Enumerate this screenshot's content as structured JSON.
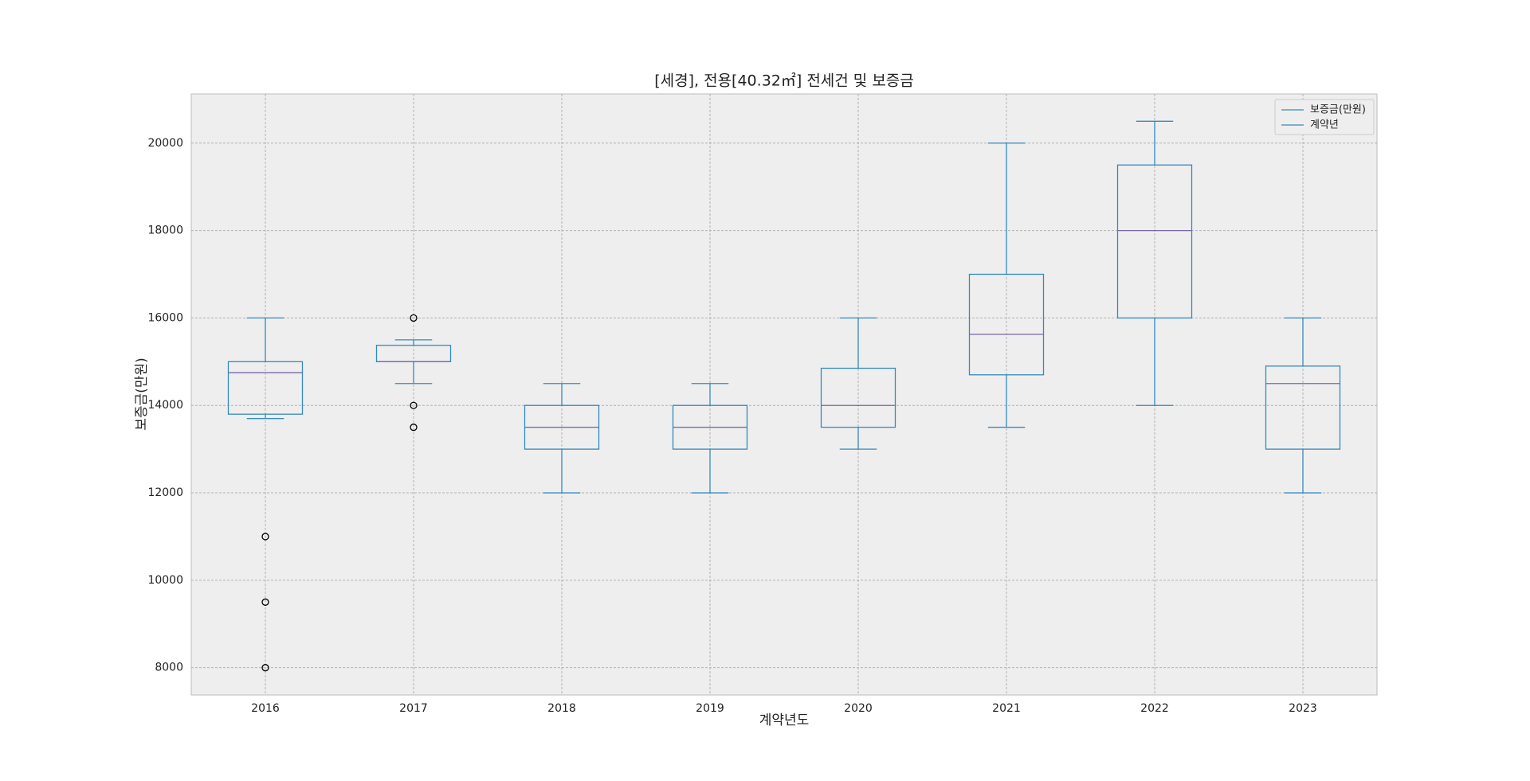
{
  "chart_data": {
    "type": "box",
    "title": "[세경], 전용[40.32㎡] 전세건 및 보증금",
    "xlabel": "계약년도",
    "ylabel": "보증금(만원)",
    "categories": [
      "2016",
      "2017",
      "2018",
      "2019",
      "2020",
      "2021",
      "2022",
      "2023"
    ],
    "boxes": [
      {
        "whislo": 13700,
        "q1": 13800,
        "med": 14750,
        "q3": 15000,
        "whishi": 16000,
        "fliers": [
          11000,
          9500,
          8000
        ]
      },
      {
        "whislo": 14500,
        "q1": 15000,
        "med": 15000,
        "q3": 15375,
        "whishi": 15500,
        "fliers": [
          16000,
          14000,
          13500
        ]
      },
      {
        "whislo": 12000,
        "q1": 13000,
        "med": 13500,
        "q3": 14000,
        "whishi": 14500,
        "fliers": []
      },
      {
        "whislo": 12000,
        "q1": 13000,
        "med": 13500,
        "q3": 14000,
        "whishi": 14500,
        "fliers": []
      },
      {
        "whislo": 13000,
        "q1": 13500,
        "med": 14000,
        "q3": 14850,
        "whishi": 16000,
        "fliers": []
      },
      {
        "whislo": 13500,
        "q1": 14700,
        "med": 15625,
        "q3": 17000,
        "whishi": 20000,
        "fliers": []
      },
      {
        "whislo": 14000,
        "q1": 16000,
        "med": 18000,
        "q3": 19500,
        "whishi": 20500,
        "fliers": []
      },
      {
        "whislo": 12000,
        "q1": 13000,
        "med": 14500,
        "q3": 14900,
        "whishi": 16000,
        "fliers": []
      }
    ],
    "box_color": "#348abd",
    "median_color": "#7a68a6",
    "legend": [
      {
        "name": "보증금(만원)",
        "color": "#348abd"
      },
      {
        "name": "계약년",
        "color": "#348abd"
      }
    ],
    "legend_position": "upper right",
    "ylim": [
      7375,
      21125
    ],
    "yticks": [
      8000,
      10000,
      12000,
      14000,
      16000,
      18000,
      20000
    ],
    "grid": true
  }
}
